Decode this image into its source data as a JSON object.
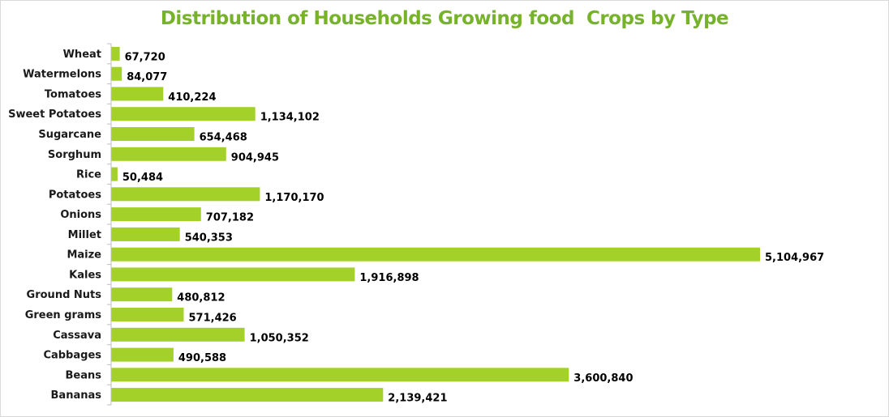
{
  "chart_data": {
    "type": "bar",
    "orientation": "horizontal",
    "title": "Distribution of Households Growing food  Crops by Type",
    "xlabel": "",
    "ylabel": "",
    "grid": false,
    "legend": "none",
    "xlim": [
      0,
      5104967
    ],
    "categories": [
      "Wheat",
      "Watermelons",
      "Tomatoes",
      "Sweet Potatoes",
      "Sugarcane",
      "Sorghum",
      "Rice",
      "Potatoes",
      "Onions",
      "Millet",
      "Maize",
      "Kales",
      "Ground Nuts",
      "Green grams",
      "Cassava",
      "Cabbages",
      "Beans",
      "Bananas"
    ],
    "values": [
      67720,
      84077,
      410224,
      1134102,
      654468,
      904945,
      50484,
      1170170,
      707182,
      540353,
      5104967,
      1916898,
      480812,
      571426,
      1050352,
      490588,
      3600840,
      2139421
    ],
    "data_labels": [
      "67,720",
      "84,077",
      "410,224",
      "1,134,102",
      "654,468",
      "904,945",
      "50,484",
      "1,170,170",
      "707,182",
      "540,353",
      "5,104,967",
      "1,916,898",
      "480,812",
      "571,426",
      "1,050,352",
      "490,588",
      "3,600,840",
      "2,139,421"
    ],
    "colors": {
      "bar": "#a3d12a",
      "title": "#76b32a",
      "axis": "#bfbfbf"
    }
  }
}
